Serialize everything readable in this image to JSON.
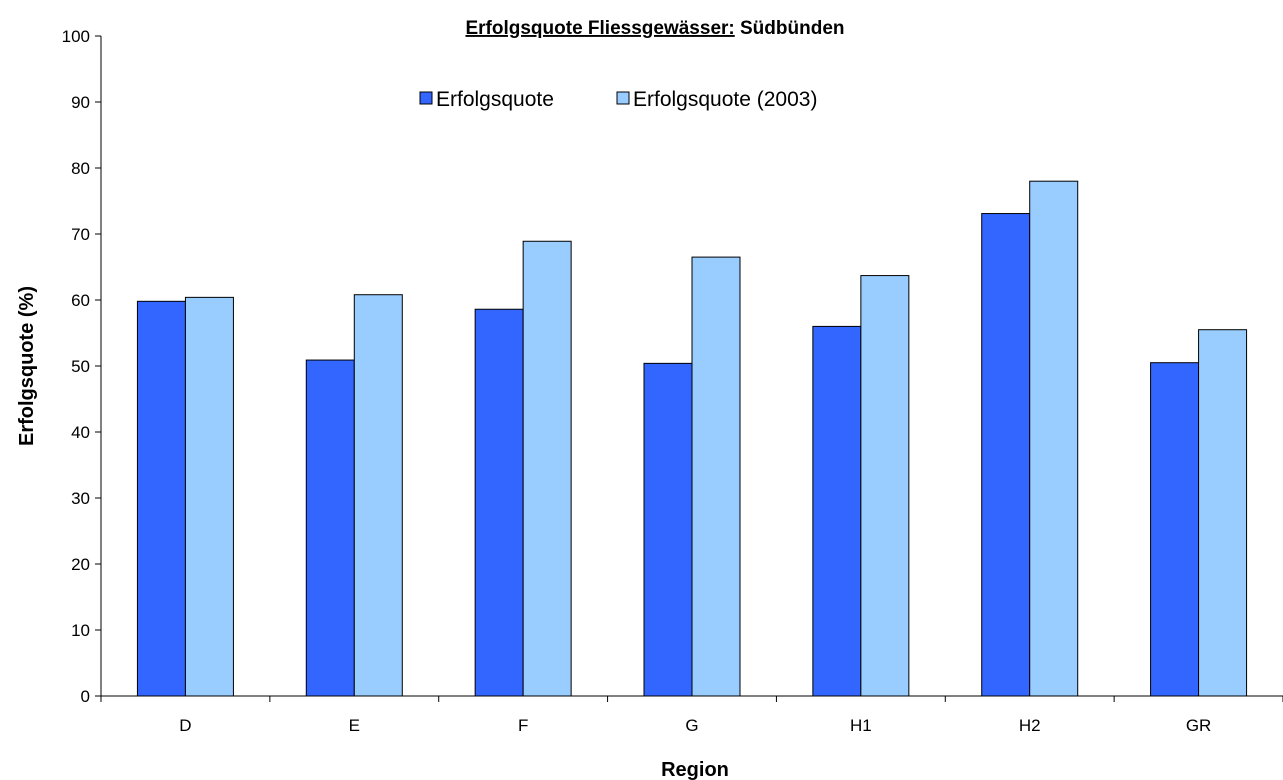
{
  "chart_data": {
    "type": "bar",
    "title_underlined": "Erfolgsquote Fliessgewässer:",
    "title_rest": " Südbünden",
    "xlabel": "Region",
    "ylabel": "Erfolgsquote (%)",
    "categories": [
      "D",
      "E",
      "F",
      "G",
      "H1",
      "H2",
      "GR"
    ],
    "ylim": [
      0,
      100
    ],
    "yticks": [
      0,
      10,
      20,
      30,
      40,
      50,
      60,
      70,
      80,
      90,
      100
    ],
    "grid": false,
    "legend_position": "top-center",
    "series": [
      {
        "name": "Erfolgsquote",
        "color": "#3366ff",
        "values": [
          59.8,
          50.9,
          58.6,
          50.4,
          56.0,
          73.1,
          50.5
        ]
      },
      {
        "name": "Erfolgsquote (2003)",
        "color": "#99ccff",
        "values": [
          60.4,
          60.8,
          68.9,
          66.5,
          63.7,
          78.0,
          55.5
        ]
      }
    ]
  }
}
